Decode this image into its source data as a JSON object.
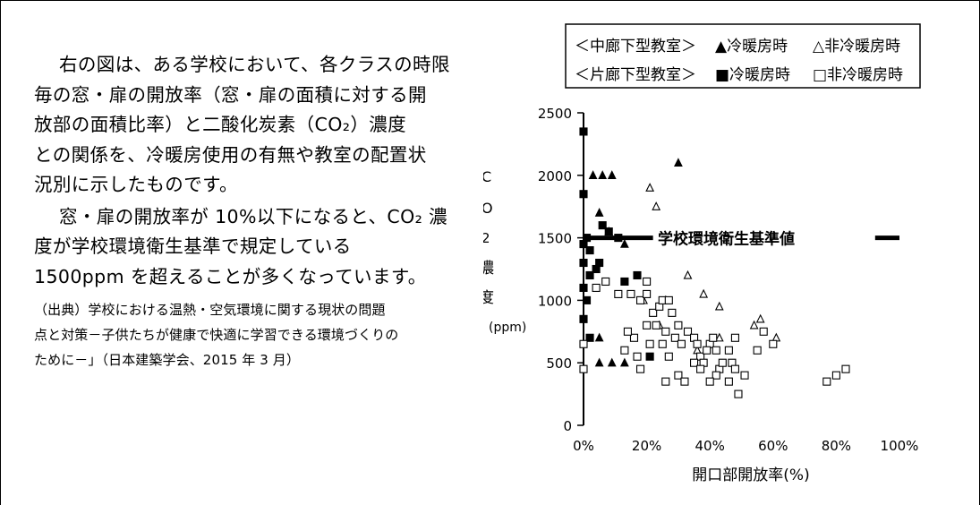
{
  "paragraph": {
    "p1_lines": [
      "右の図は、ある学校において、各クラスの時限",
      "毎の窓・扉の開放率（窓・扉の面積に対する開",
      "放部の面積比率）と二酸化炭素（CO₂）濃度",
      "との関係を、冷暖房使用の有無や教室の配置状",
      "況別に示したものです。"
    ],
    "p2_lines": [
      "窓・扉の開放率が 10%以下になると、CO₂ 濃",
      "度が学校環境衛生基準で規定している",
      "1500ppm を超えることが多くなっています。"
    ],
    "source_lines": [
      "（出典）学校における温熱・空気環境に関する現状の問題",
      "点と対策－子供たちが健康で快適に学習できる環境づくりの",
      "ために－」（日本建築学会、2015 年 3 月）"
    ]
  },
  "chart_data": {
    "type": "scatter",
    "xlabel": "開口部開放率(%)",
    "ylabel_chars": [
      "C",
      "O",
      "2",
      "濃",
      "度"
    ],
    "ylabel_unit": "(ppm)",
    "x_tick_labels": [
      "0%",
      "20%",
      "40%",
      "60%",
      "80%",
      "100%"
    ],
    "x_ticks": [
      0,
      20,
      40,
      60,
      80,
      100
    ],
    "y_tick_labels": [
      "0",
      "500",
      "1000",
      "1500",
      "2000",
      "2500"
    ],
    "y_ticks": [
      0,
      500,
      1000,
      1500,
      2000,
      2500
    ],
    "xlim": [
      0,
      100
    ],
    "ylim": [
      0,
      2500
    ],
    "legend": {
      "row1": {
        "group": "＜中廊下型教室＞",
        "filled": "▲冷暖房時",
        "open": "△非冷暖房時"
      },
      "row2": {
        "group": "＜片廊下型教室＞",
        "filled": "■冷暖房時",
        "open": "□非冷暖房時"
      },
      "placement": "top"
    },
    "reference_line": {
      "label": "学校環境衛生基準値",
      "y": 1500,
      "x_start": 0,
      "x_end": 100
    },
    "series": [
      {
        "name": "中廊下型教室 冷暖房時",
        "marker": "triangle-filled",
        "points": [
          [
            3,
            2000
          ],
          [
            6,
            2000
          ],
          [
            9,
            2000
          ],
          [
            30,
            2100
          ],
          [
            5,
            1700
          ],
          [
            8,
            1550
          ],
          [
            13,
            1450
          ],
          [
            5,
            700
          ],
          [
            5,
            500
          ],
          [
            9,
            500
          ],
          [
            13,
            500
          ]
        ]
      },
      {
        "name": "中廊下型教室 非冷暖房時",
        "marker": "triangle-open",
        "points": [
          [
            21,
            1900
          ],
          [
            23,
            1750
          ],
          [
            33,
            1200
          ],
          [
            38,
            1050
          ],
          [
            43,
            950
          ],
          [
            54,
            800
          ],
          [
            56,
            850
          ],
          [
            61,
            700
          ],
          [
            43,
            700
          ],
          [
            36,
            600
          ],
          [
            24,
            800
          ],
          [
            26,
            1000
          ],
          [
            19,
            1000
          ]
        ]
      },
      {
        "name": "片廊下型教室 冷暖房時",
        "marker": "square-filled",
        "points": [
          [
            0,
            2350
          ],
          [
            0,
            1850
          ],
          [
            0,
            1450
          ],
          [
            0,
            1300
          ],
          [
            0,
            1100
          ],
          [
            0,
            850
          ],
          [
            1,
            1000
          ],
          [
            1,
            1500
          ],
          [
            2,
            1400
          ],
          [
            2,
            1200
          ],
          [
            4,
            1250
          ],
          [
            5,
            1300
          ],
          [
            6,
            1600
          ],
          [
            8,
            1550
          ],
          [
            11,
            1500
          ],
          [
            13,
            1150
          ],
          [
            17,
            1200
          ],
          [
            21,
            550
          ],
          [
            2,
            700
          ]
        ]
      },
      {
        "name": "片廊下型教室 非冷暖房時",
        "marker": "square-open",
        "points": [
          [
            0,
            650
          ],
          [
            0,
            450
          ],
          [
            4,
            1100
          ],
          [
            7,
            1150
          ],
          [
            11,
            1050
          ],
          [
            15,
            1050
          ],
          [
            18,
            1000
          ],
          [
            20,
            1150
          ],
          [
            20,
            1050
          ],
          [
            22,
            900
          ],
          [
            24,
            950
          ],
          [
            23,
            800
          ],
          [
            25,
            1000
          ],
          [
            26,
            750
          ],
          [
            27,
            1000
          ],
          [
            28,
            900
          ],
          [
            30,
            800
          ],
          [
            29,
            700
          ],
          [
            33,
            750
          ],
          [
            31,
            650
          ],
          [
            35,
            700
          ],
          [
            36,
            650
          ],
          [
            37,
            550
          ],
          [
            35,
            500
          ],
          [
            38,
            500
          ],
          [
            40,
            650
          ],
          [
            42,
            600
          ],
          [
            43,
            450
          ],
          [
            42,
            400
          ],
          [
            40,
            350
          ],
          [
            46,
            600
          ],
          [
            47,
            500
          ],
          [
            44,
            500
          ],
          [
            48,
            450
          ],
          [
            39,
            600
          ],
          [
            41,
            700
          ],
          [
            30,
            400
          ],
          [
            27,
            550
          ],
          [
            32,
            350
          ],
          [
            37,
            450
          ],
          [
            25,
            650
          ],
          [
            26,
            350
          ],
          [
            20,
            800
          ],
          [
            21,
            650
          ],
          [
            16,
            700
          ],
          [
            17,
            550
          ],
          [
            18,
            450
          ],
          [
            14,
            750
          ],
          [
            13,
            600
          ],
          [
            48,
            700
          ],
          [
            55,
            600
          ],
          [
            51,
            400
          ],
          [
            46,
            350
          ],
          [
            49,
            250
          ],
          [
            57,
            750
          ],
          [
            60,
            650
          ],
          [
            77,
            350
          ],
          [
            80,
            400
          ],
          [
            83,
            450
          ]
        ]
      }
    ]
  }
}
